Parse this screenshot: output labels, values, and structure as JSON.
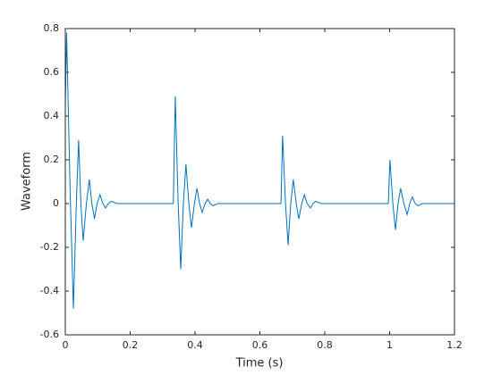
{
  "chart_data": {
    "type": "line",
    "xlabel": "Time (s)",
    "ylabel": "Waveform",
    "x": [
      0,
      0.004,
      0.015,
      0.025,
      0.034,
      0.041,
      0.048,
      0.055,
      0.065,
      0.074,
      0.082,
      0.09,
      0.098,
      0.107,
      0.116,
      0.124,
      0.133,
      0.142,
      0.16,
      0.2,
      0.25,
      0.3,
      0.333,
      0.339,
      0.348,
      0.356,
      0.364,
      0.372,
      0.381,
      0.389,
      0.398,
      0.406,
      0.414,
      0.422,
      0.431,
      0.439,
      0.447,
      0.455,
      0.47,
      0.52,
      0.58,
      0.64,
      0.665,
      0.67,
      0.679,
      0.687,
      0.695,
      0.703,
      0.712,
      0.72,
      0.729,
      0.737,
      0.746,
      0.756,
      0.764,
      0.772,
      0.79,
      0.85,
      0.92,
      0.99,
      0.996,
      1.001,
      1.01,
      1.018,
      1.026,
      1.034,
      1.044,
      1.054,
      1.062,
      1.07,
      1.079,
      1.087,
      1.1,
      1.15,
      1.2
    ],
    "series": [
      {
        "color": "#0072bd",
        "values": [
          0.45,
          0.78,
          0.05,
          -0.48,
          0.0,
          0.29,
          0.0,
          -0.17,
          0.0,
          0.11,
          0.0,
          -0.07,
          0.0,
          0.04,
          0.0,
          -0.02,
          0.0,
          0.01,
          0,
          0,
          0,
          0,
          0,
          0.49,
          0.0,
          -0.3,
          0.0,
          0.18,
          0.0,
          -0.11,
          0.0,
          0.07,
          0.0,
          -0.04,
          0.0,
          0.02,
          0.0,
          -0.01,
          0,
          0,
          0,
          0,
          0,
          0.31,
          0.0,
          -0.19,
          0.0,
          0.11,
          0.0,
          -0.07,
          0.0,
          0.04,
          0.0,
          -0.02,
          0.0,
          0.01,
          0,
          0,
          0,
          0,
          0,
          0.2,
          0.0,
          -0.12,
          0.0,
          0.07,
          0.0,
          -0.05,
          0.0,
          0.03,
          0.0,
          -0.01,
          0,
          0,
          0
        ]
      }
    ],
    "xlim": [
      0,
      1.2
    ],
    "xticks": [
      0,
      0.2,
      0.4,
      0.6,
      0.8,
      1,
      1.2
    ],
    "ylim": [
      -0.6,
      0.8
    ],
    "yticks": [
      -0.6,
      -0.4,
      -0.2,
      0,
      0.2,
      0.4,
      0.6,
      0.8
    ],
    "grid": false
  }
}
